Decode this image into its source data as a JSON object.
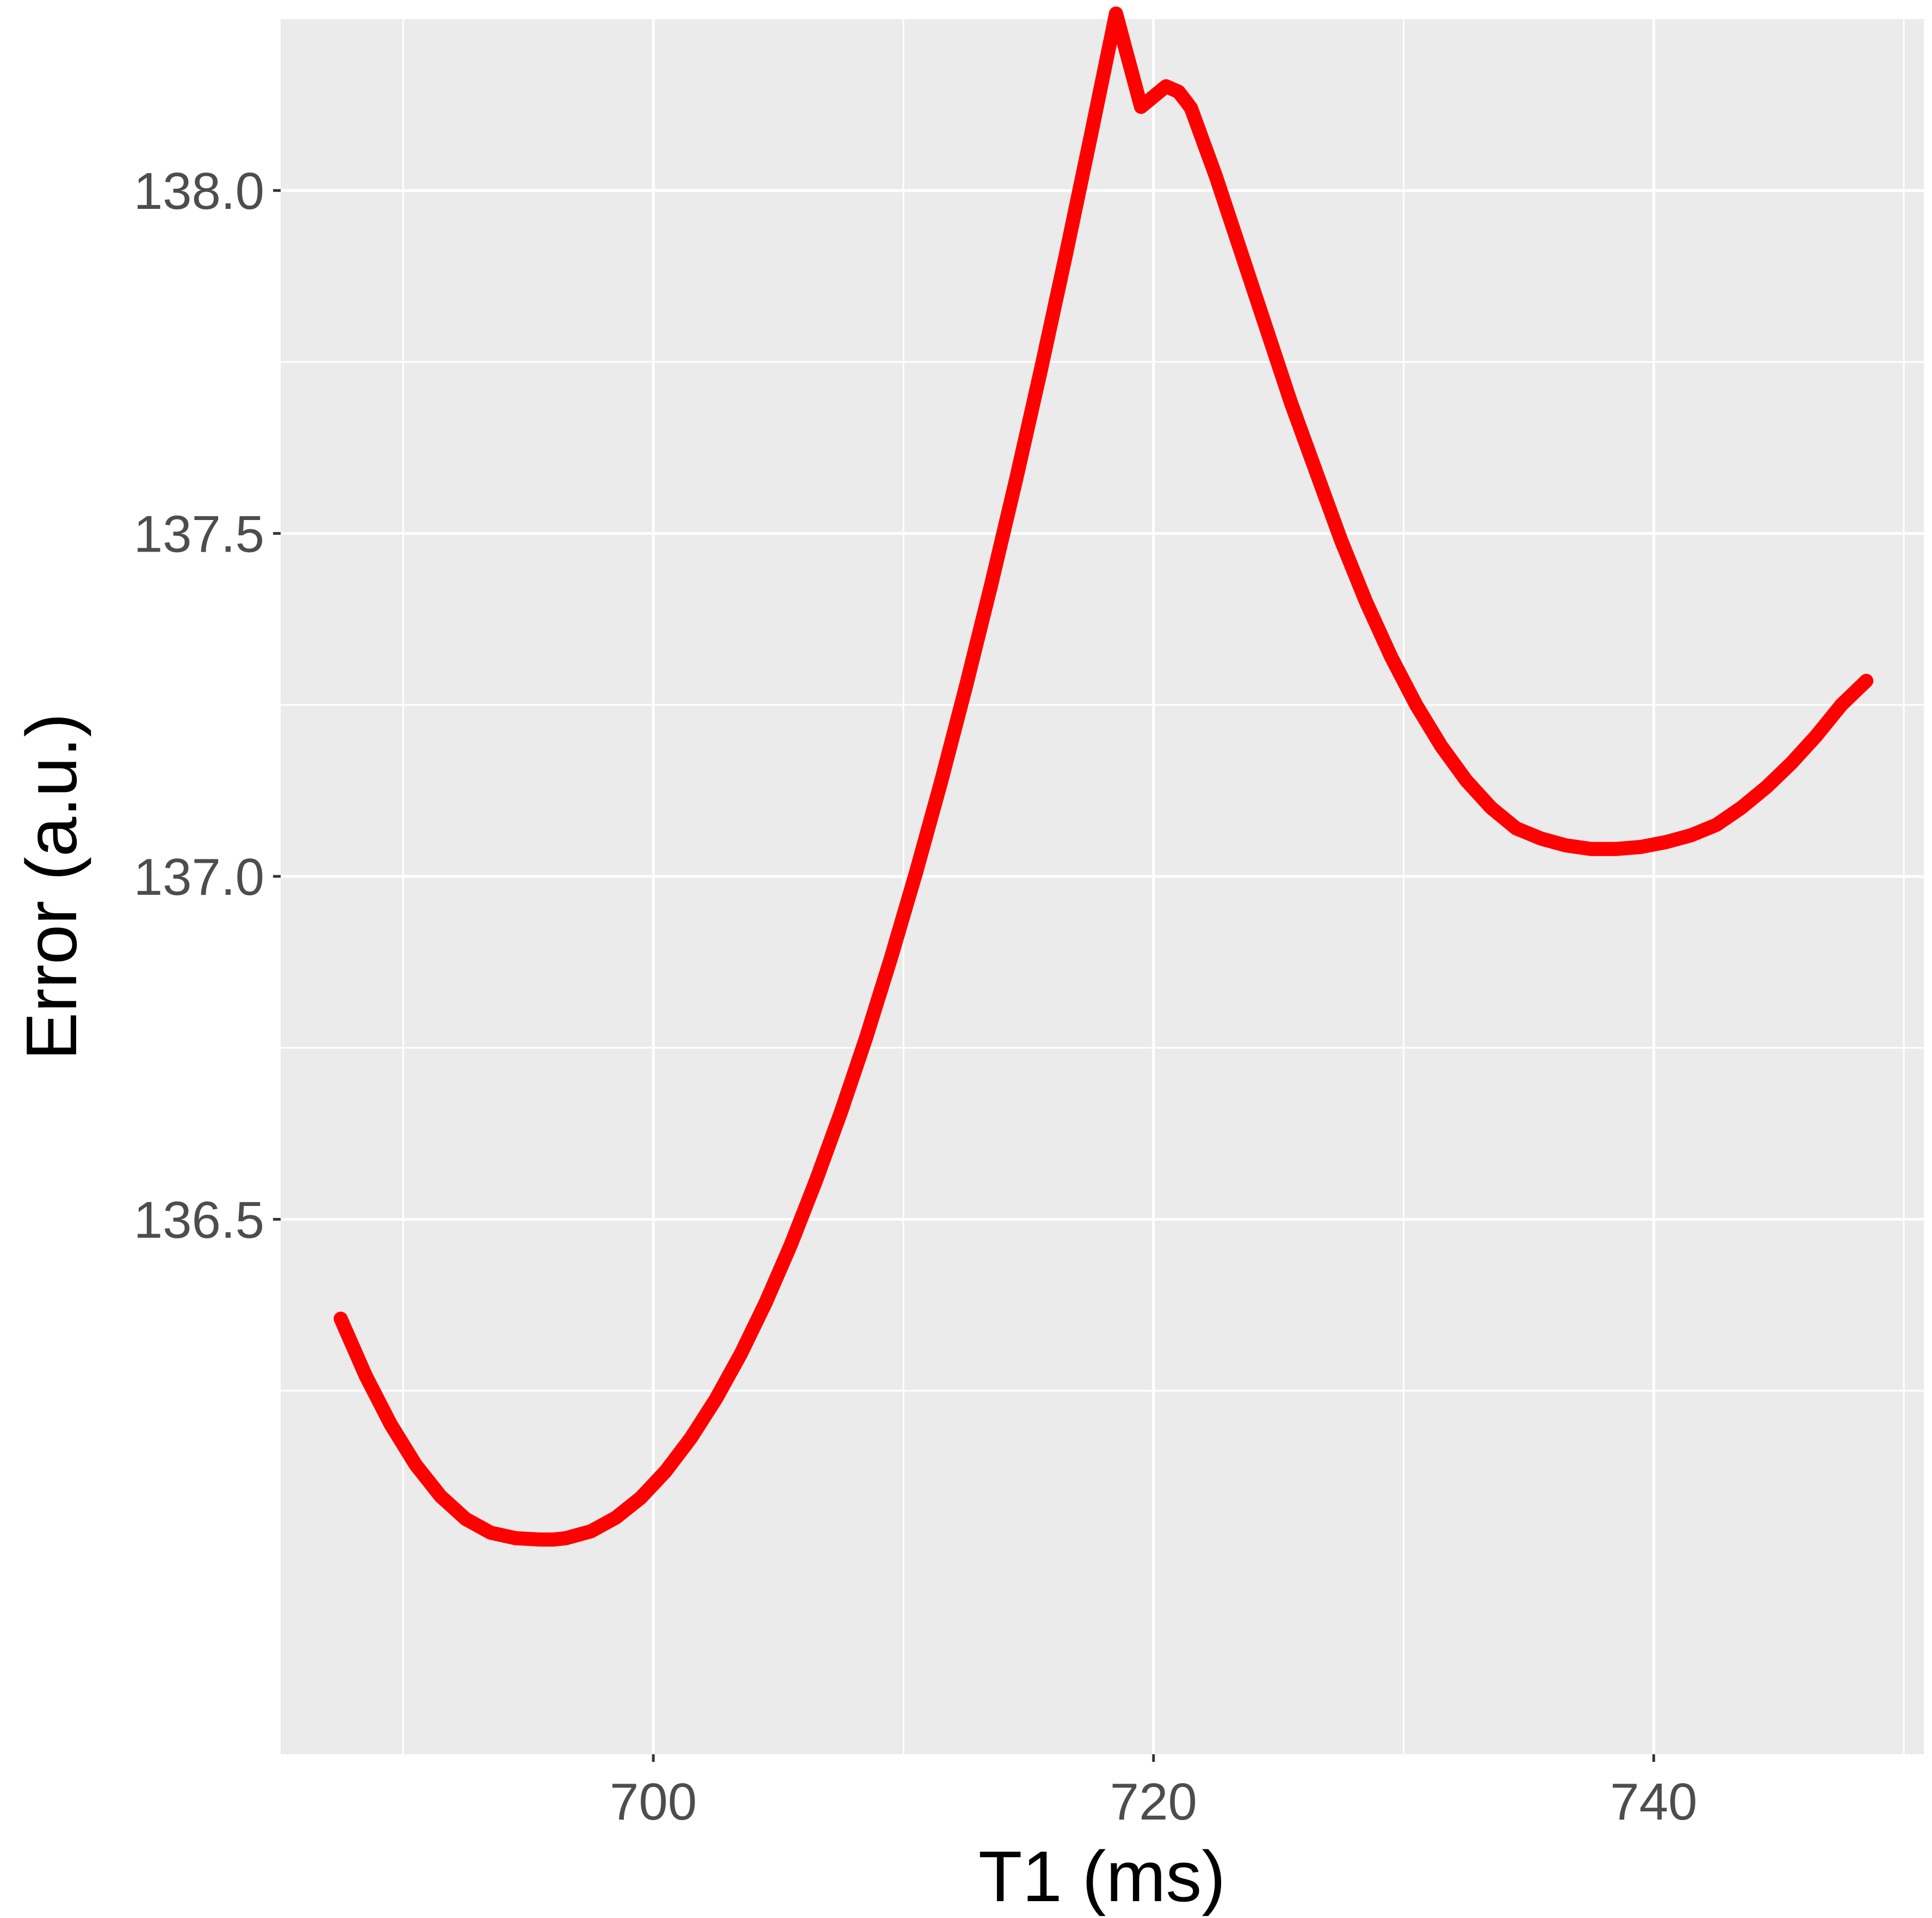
{
  "chart_data": {
    "type": "line",
    "title": "",
    "xlabel": "T1 (ms)",
    "ylabel": "Error (a.u.)",
    "xlim": [
      685.1,
      750.8
    ],
    "ylim": [
      135.72,
      138.25
    ],
    "x_ticks": [
      700,
      720,
      740
    ],
    "x_tick_labels": [
      "700",
      "720",
      "740"
    ],
    "x_minor_ticks": [
      690,
      710,
      730,
      750
    ],
    "y_ticks": [
      136.5,
      137.0,
      137.5,
      138.0
    ],
    "y_tick_labels": [
      "136.5",
      "137.0",
      "137.5",
      "138.0"
    ],
    "y_minor_ticks": [
      136.25,
      136.75,
      137.25,
      137.75
    ],
    "grid": true,
    "legend": "none",
    "colors": {
      "series": "#ff0000",
      "panel": "#ebebeb",
      "grid": "#ffffff"
    },
    "series": [
      {
        "x": [
          687.5,
          688.5,
          689.5,
          690.5,
          691.5,
          692.5,
          693.5,
          694.5,
          695.5,
          696.0,
          696.5,
          697.5,
          698.5,
          699.5,
          700.5,
          701.5,
          702.5,
          703.5,
          704.5,
          705.5,
          706.5,
          707.5,
          708.5,
          709.5,
          710.5,
          711.5,
          712.5,
          713.5,
          714.5,
          715.5,
          716.5,
          717.5,
          718.5,
          719.5,
          720.5,
          721.0,
          721.3,
          721.5,
          722.0,
          722.5,
          723.5,
          724.5,
          725.5,
          726.5,
          727.5,
          728.5,
          729.5,
          730.5,
          731.5,
          732.5,
          733.5,
          734.5,
          735.5,
          736.5,
          737.5,
          738.5,
          739.5,
          740.5,
          741.5,
          742.5,
          743.5,
          744.5,
          745.5,
          746.5,
          747.5,
          748.5
        ],
        "y": [
          136.355,
          136.272,
          136.201,
          136.142,
          136.096,
          136.063,
          136.043,
          136.035,
          136.033,
          136.033,
          136.035,
          136.045,
          136.065,
          136.094,
          136.133,
          136.181,
          136.238,
          136.304,
          136.379,
          136.463,
          136.556,
          136.656,
          136.764,
          136.881,
          137.005,
          137.137,
          137.277,
          137.424,
          137.578,
          137.739,
          137.907,
          138.081,
          138.258,
          138.122,
          138.152,
          138.144,
          138.13,
          138.12,
          138.07,
          138.02,
          137.91,
          137.8,
          137.69,
          137.59,
          137.49,
          137.4,
          137.32,
          137.25,
          137.19,
          137.14,
          137.1,
          137.07,
          137.055,
          137.045,
          137.04,
          137.04,
          137.043,
          137.05,
          137.06,
          137.075,
          137.1,
          137.13,
          137.165,
          137.205,
          137.25,
          137.285
        ]
      }
    ]
  }
}
